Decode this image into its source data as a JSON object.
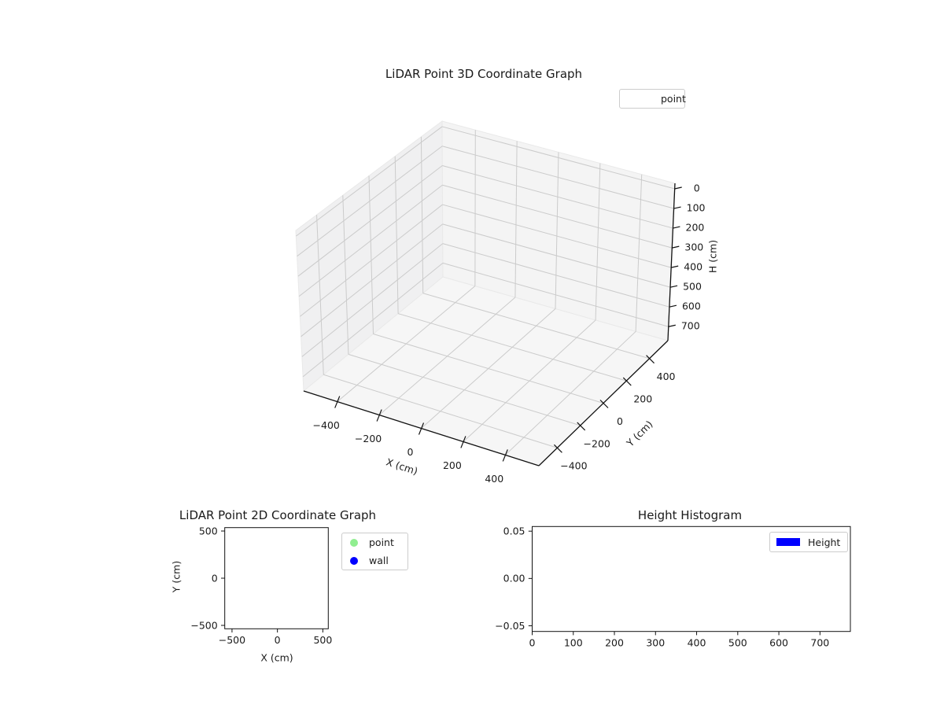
{
  "figure": {
    "background": "#ffffff"
  },
  "colors": {
    "point_green": "#90ee90",
    "wall_blue": "#0000ff",
    "height_blue": "#0000ff",
    "pane_left": "#f0f0f1",
    "pane_right": "#f4f4f4",
    "pane_floor": "#f6f6f6",
    "grid": "#cbcbcb",
    "spine": "#111111",
    "text": "#1a1a1a"
  },
  "chart_data": [
    {
      "id": "lidar-3d",
      "type": "scatter3d",
      "title": "LiDAR Point 3D Coordinate Graph",
      "axes": {
        "x": {
          "label": "X (cm)",
          "ticks": [
            -400,
            -200,
            0,
            200,
            400
          ],
          "tick_labels": [
            "−400",
            "−200",
            "0",
            "200",
            "400"
          ],
          "range": [
            -560,
            560
          ]
        },
        "y": {
          "label": "Y (cm)",
          "ticks": [
            -400,
            -200,
            0,
            200,
            400
          ],
          "tick_labels": [
            "−400",
            "−200",
            "0",
            "200",
            "400"
          ],
          "range": [
            -560,
            560
          ]
        },
        "z": {
          "label": "H (cm)",
          "ticks": [
            0,
            100,
            200,
            300,
            400,
            500,
            600,
            700
          ],
          "tick_labels": [
            "0",
            "100",
            "200",
            "300",
            "400",
            "500",
            "600",
            "700"
          ],
          "range": [
            -28,
            771
          ],
          "inverted": true
        }
      },
      "grid": true,
      "legend": {
        "position": "upper right",
        "entries": [
          {
            "label": "point",
            "marker": "none",
            "color": null
          }
        ]
      },
      "series": [
        {
          "name": "point",
          "points": []
        }
      ]
    },
    {
      "id": "lidar-2d",
      "type": "scatter",
      "title": "LiDAR Point 2D Coordinate Graph",
      "axes": {
        "x": {
          "label": "X (cm)",
          "ticks": [
            -500,
            0,
            500
          ],
          "tick_labels": [
            "−500",
            "0",
            "500"
          ],
          "range": [
            -580,
            560
          ]
        },
        "y": {
          "label": "Y (cm)",
          "ticks": [
            500,
            0,
            -500
          ],
          "tick_labels": [
            "500",
            "0",
            "−500"
          ],
          "range": [
            -536,
            536
          ]
        }
      },
      "grid": false,
      "legend": {
        "position": "upper right outside",
        "entries": [
          {
            "label": "point",
            "marker": "circle",
            "color": "#90ee90"
          },
          {
            "label": "wall",
            "marker": "circle",
            "color": "#0000ff"
          }
        ]
      },
      "series": [
        {
          "name": "point",
          "color": "#90ee90",
          "points": []
        },
        {
          "name": "wall",
          "color": "#0000ff",
          "points": []
        }
      ]
    },
    {
      "id": "height-histogram",
      "type": "bar",
      "title": "Height Histogram",
      "axes": {
        "x": {
          "label": "",
          "ticks": [
            0,
            100,
            200,
            300,
            400,
            500,
            600,
            700
          ],
          "tick_labels": [
            "0",
            "100",
            "200",
            "300",
            "400",
            "500",
            "600",
            "700"
          ],
          "range": [
            0,
            774
          ]
        },
        "y": {
          "label": "",
          "ticks": [
            0.05,
            0.0,
            -0.05
          ],
          "tick_labels": [
            "0.05",
            "0.00",
            "−0.05"
          ],
          "range": [
            -0.056,
            0.0549
          ]
        }
      },
      "grid": false,
      "legend": {
        "position": "upper right",
        "entries": [
          {
            "label": "Height",
            "marker": "rect",
            "color": "#0000ff"
          }
        ]
      },
      "values": []
    }
  ]
}
